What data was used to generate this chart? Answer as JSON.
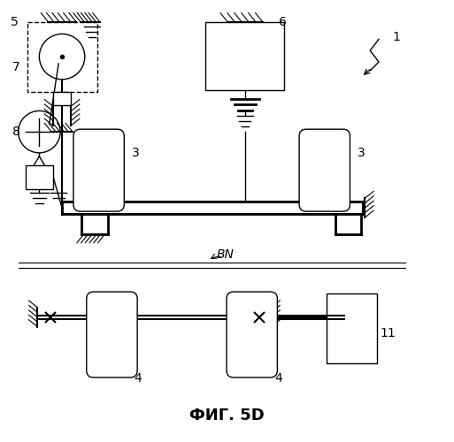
{
  "title": "ФИГ. 5D",
  "title_fontsize": 13,
  "bg_color": "#ffffff",
  "line_color": "#000000",
  "label_fontsize": 10,
  "fig_width": 5.13,
  "fig_height": 5.0,
  "dpi": 100
}
